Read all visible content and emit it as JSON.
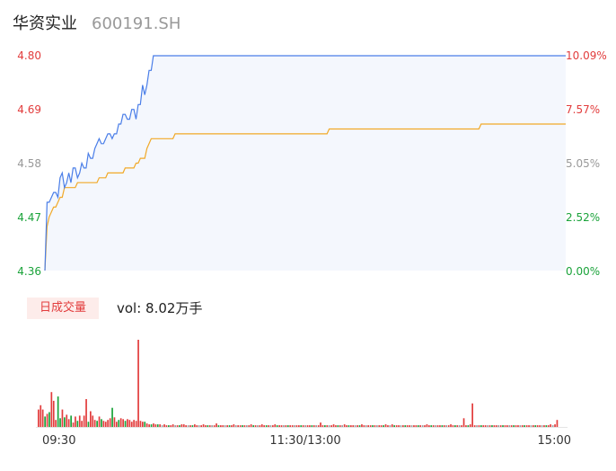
{
  "header": {
    "name": "华资实业",
    "code": "600191.SH"
  },
  "volume_panel": {
    "tag": "日成交量",
    "vol_label": "vol: 8.02万手"
  },
  "colors": {
    "up": "#e23c3c",
    "down": "#1aa33a",
    "flat": "#999999",
    "price": "#4a7ee8",
    "avg": "#f1a928",
    "fill": "#f4f7fd"
  },
  "chart_data": {
    "type": "line",
    "price_axis": {
      "labels": [
        "4.80",
        "4.69",
        "4.58",
        "4.47",
        "4.36"
      ],
      "ylim": [
        4.36,
        4.8
      ]
    },
    "pct_axis": {
      "labels": [
        "10.09%",
        "7.57%",
        "5.05%",
        "2.52%",
        "0.00%"
      ]
    },
    "x_labels": [
      "09:30",
      "11:30/13:00",
      "15:00"
    ],
    "xlim": [
      0,
      240
    ],
    "series": [
      {
        "key": "price",
        "x": [
          0,
          1,
          2,
          3,
          4,
          5,
          6,
          7,
          8,
          9,
          10,
          11,
          12,
          13,
          14,
          15,
          16,
          17,
          18,
          19,
          20,
          21,
          22,
          23,
          24,
          25,
          26,
          27,
          28,
          29,
          30,
          31,
          32,
          33,
          34,
          35,
          36,
          37,
          38,
          39,
          40,
          41,
          42,
          43,
          44,
          45,
          46,
          47,
          48,
          49,
          50,
          240
        ],
        "values": [
          4.36,
          4.5,
          4.5,
          4.51,
          4.52,
          4.52,
          4.51,
          4.55,
          4.56,
          4.53,
          4.54,
          4.56,
          4.54,
          4.57,
          4.57,
          4.55,
          4.56,
          4.58,
          4.57,
          4.57,
          4.6,
          4.59,
          4.59,
          4.61,
          4.62,
          4.63,
          4.62,
          4.62,
          4.63,
          4.64,
          4.64,
          4.63,
          4.64,
          4.64,
          4.66,
          4.66,
          4.68,
          4.68,
          4.67,
          4.67,
          4.69,
          4.69,
          4.67,
          4.7,
          4.7,
          4.74,
          4.72,
          4.74,
          4.77,
          4.77,
          4.8,
          4.8
        ]
      },
      {
        "key": "avg",
        "x": [
          0,
          1,
          2,
          3,
          4,
          5,
          6,
          7,
          8,
          9,
          14,
          15,
          24,
          25,
          28,
          29,
          36,
          37,
          40,
          41,
          42,
          43,
          44,
          45,
          46,
          47,
          48,
          49,
          59,
          60,
          130,
          131,
          200,
          201,
          240
        ],
        "values": [
          4.36,
          4.45,
          4.47,
          4.48,
          4.49,
          4.49,
          4.5,
          4.51,
          4.51,
          4.53,
          4.53,
          4.54,
          4.54,
          4.55,
          4.55,
          4.56,
          4.56,
          4.57,
          4.57,
          4.57,
          4.58,
          4.58,
          4.59,
          4.59,
          4.59,
          4.61,
          4.62,
          4.63,
          4.63,
          4.64,
          4.64,
          4.65,
          4.65,
          4.66,
          4.66
        ]
      }
    ],
    "volume": {
      "max": 100,
      "bars": [
        [
          0,
          20,
          "up"
        ],
        [
          1,
          25,
          "up"
        ],
        [
          2,
          20,
          "up"
        ],
        [
          3,
          12,
          "down"
        ],
        [
          4,
          15,
          "up"
        ],
        [
          5,
          17,
          "down"
        ],
        [
          6,
          40,
          "up"
        ],
        [
          7,
          30,
          "up"
        ],
        [
          8,
          8,
          "up"
        ],
        [
          9,
          35,
          "down"
        ],
        [
          10,
          10,
          "down"
        ],
        [
          11,
          20,
          "up"
        ],
        [
          12,
          11,
          "down"
        ],
        [
          13,
          14,
          "up"
        ],
        [
          14,
          9,
          "up"
        ],
        [
          15,
          13,
          "down"
        ],
        [
          16,
          5,
          "up"
        ],
        [
          17,
          12,
          "up"
        ],
        [
          18,
          7,
          "down"
        ],
        [
          19,
          13,
          "up"
        ],
        [
          20,
          7,
          "up"
        ],
        [
          21,
          13,
          "up"
        ],
        [
          22,
          32,
          "up"
        ],
        [
          23,
          6,
          "down"
        ],
        [
          24,
          18,
          "up"
        ],
        [
          25,
          13,
          "up"
        ],
        [
          26,
          8,
          "up"
        ],
        [
          27,
          7,
          "down"
        ],
        [
          28,
          12,
          "up"
        ],
        [
          29,
          9,
          "down"
        ],
        [
          30,
          7,
          "up"
        ],
        [
          31,
          6,
          "up"
        ],
        [
          32,
          8,
          "up"
        ],
        [
          33,
          10,
          "up"
        ],
        [
          34,
          22,
          "down"
        ],
        [
          35,
          11,
          "up"
        ],
        [
          36,
          6,
          "up"
        ],
        [
          37,
          8,
          "down"
        ],
        [
          38,
          10,
          "up"
        ],
        [
          39,
          9,
          "up"
        ],
        [
          40,
          7,
          "down"
        ],
        [
          41,
          9,
          "up"
        ],
        [
          42,
          8,
          "up"
        ],
        [
          43,
          6,
          "up"
        ],
        [
          44,
          8,
          "up"
        ],
        [
          45,
          7,
          "up"
        ],
        [
          46,
          100,
          "up"
        ],
        [
          47,
          7,
          "up"
        ],
        [
          48,
          6,
          "up"
        ],
        [
          49,
          6,
          "down"
        ],
        [
          50,
          4,
          "up"
        ],
        [
          51,
          3,
          "up"
        ],
        [
          52,
          3,
          "down"
        ],
        [
          53,
          4,
          "up"
        ],
        [
          54,
          3,
          "up"
        ],
        [
          55,
          3,
          "down"
        ],
        [
          56,
          3,
          "up"
        ],
        [
          57,
          2,
          "flat"
        ],
        [
          58,
          3,
          "up"
        ],
        [
          59,
          2,
          "up"
        ],
        [
          60,
          2,
          "down"
        ],
        [
          61,
          2,
          "up"
        ],
        [
          62,
          3,
          "up"
        ],
        [
          63,
          2,
          "flat"
        ],
        [
          64,
          2,
          "up"
        ],
        [
          65,
          2,
          "down"
        ],
        [
          66,
          3,
          "up"
        ],
        [
          67,
          3,
          "up"
        ],
        [
          68,
          2,
          "up"
        ],
        [
          69,
          2,
          "flat"
        ],
        [
          70,
          2,
          "up"
        ],
        [
          71,
          2,
          "down"
        ],
        [
          72,
          3,
          "up"
        ],
        [
          73,
          2,
          "up"
        ],
        [
          74,
          2,
          "flat"
        ],
        [
          75,
          2,
          "up"
        ],
        [
          76,
          3,
          "up"
        ],
        [
          77,
          2,
          "up"
        ],
        [
          78,
          2,
          "down"
        ],
        [
          79,
          2,
          "up"
        ],
        [
          80,
          2,
          "flat"
        ],
        [
          81,
          2,
          "up"
        ],
        [
          82,
          4,
          "up"
        ],
        [
          83,
          2,
          "down"
        ],
        [
          84,
          2,
          "up"
        ],
        [
          85,
          2,
          "up"
        ],
        [
          86,
          2,
          "flat"
        ],
        [
          87,
          2,
          "up"
        ],
        [
          88,
          2,
          "down"
        ],
        [
          89,
          2,
          "up"
        ],
        [
          90,
          3,
          "up"
        ],
        [
          91,
          2,
          "flat"
        ],
        [
          92,
          2,
          "up"
        ],
        [
          93,
          2,
          "up"
        ],
        [
          94,
          2,
          "down"
        ],
        [
          95,
          2,
          "up"
        ],
        [
          96,
          2,
          "flat"
        ],
        [
          97,
          2,
          "up"
        ],
        [
          98,
          3,
          "up"
        ],
        [
          99,
          2,
          "down"
        ],
        [
          100,
          2,
          "up"
        ],
        [
          101,
          2,
          "flat"
        ],
        [
          102,
          2,
          "up"
        ],
        [
          103,
          3,
          "up"
        ],
        [
          104,
          2,
          "up"
        ],
        [
          105,
          2,
          "down"
        ],
        [
          106,
          2,
          "up"
        ],
        [
          107,
          2,
          "flat"
        ],
        [
          108,
          2,
          "up"
        ],
        [
          109,
          3,
          "up"
        ],
        [
          110,
          2,
          "down"
        ],
        [
          111,
          2,
          "up"
        ],
        [
          112,
          2,
          "up"
        ],
        [
          113,
          2,
          "flat"
        ],
        [
          114,
          2,
          "up"
        ],
        [
          115,
          2,
          "down"
        ],
        [
          116,
          2,
          "up"
        ],
        [
          117,
          2,
          "up"
        ],
        [
          118,
          2,
          "flat"
        ],
        [
          119,
          2,
          "up"
        ],
        [
          120,
          2,
          "up"
        ],
        [
          121,
          2,
          "down"
        ],
        [
          122,
          2,
          "up"
        ],
        [
          123,
          2,
          "flat"
        ],
        [
          124,
          2,
          "up"
        ],
        [
          125,
          2,
          "up"
        ],
        [
          126,
          2,
          "down"
        ],
        [
          127,
          2,
          "up"
        ],
        [
          128,
          2,
          "flat"
        ],
        [
          129,
          2,
          "up"
        ],
        [
          130,
          5,
          "up"
        ],
        [
          131,
          2,
          "up"
        ],
        [
          132,
          2,
          "down"
        ],
        [
          133,
          2,
          "up"
        ],
        [
          134,
          2,
          "flat"
        ],
        [
          135,
          2,
          "up"
        ],
        [
          136,
          3,
          "up"
        ],
        [
          137,
          2,
          "up"
        ],
        [
          138,
          2,
          "down"
        ],
        [
          139,
          2,
          "up"
        ],
        [
          140,
          2,
          "flat"
        ],
        [
          141,
          3,
          "up"
        ],
        [
          142,
          2,
          "up"
        ],
        [
          143,
          2,
          "down"
        ],
        [
          144,
          2,
          "up"
        ],
        [
          145,
          2,
          "up"
        ],
        [
          146,
          2,
          "flat"
        ],
        [
          147,
          2,
          "up"
        ],
        [
          148,
          2,
          "down"
        ],
        [
          149,
          3,
          "up"
        ],
        [
          150,
          2,
          "up"
        ],
        [
          151,
          2,
          "flat"
        ],
        [
          152,
          2,
          "up"
        ],
        [
          153,
          2,
          "up"
        ],
        [
          154,
          2,
          "down"
        ],
        [
          155,
          2,
          "up"
        ],
        [
          156,
          2,
          "flat"
        ],
        [
          157,
          2,
          "up"
        ],
        [
          158,
          2,
          "up"
        ],
        [
          159,
          2,
          "down"
        ],
        [
          160,
          3,
          "up"
        ],
        [
          161,
          2,
          "up"
        ],
        [
          162,
          2,
          "flat"
        ],
        [
          163,
          3,
          "up"
        ],
        [
          164,
          2,
          "down"
        ],
        [
          165,
          2,
          "up"
        ],
        [
          166,
          2,
          "up"
        ],
        [
          167,
          2,
          "flat"
        ],
        [
          168,
          2,
          "up"
        ],
        [
          169,
          2,
          "down"
        ],
        [
          170,
          2,
          "up"
        ],
        [
          171,
          2,
          "up"
        ],
        [
          172,
          2,
          "flat"
        ],
        [
          173,
          2,
          "up"
        ],
        [
          174,
          2,
          "up"
        ],
        [
          175,
          2,
          "down"
        ],
        [
          176,
          2,
          "up"
        ],
        [
          177,
          2,
          "flat"
        ],
        [
          178,
          2,
          "up"
        ],
        [
          179,
          3,
          "up"
        ],
        [
          180,
          2,
          "up"
        ],
        [
          181,
          2,
          "down"
        ],
        [
          182,
          2,
          "up"
        ],
        [
          183,
          2,
          "flat"
        ],
        [
          184,
          2,
          "up"
        ],
        [
          185,
          2,
          "up"
        ],
        [
          186,
          2,
          "down"
        ],
        [
          187,
          2,
          "up"
        ],
        [
          188,
          2,
          "flat"
        ],
        [
          189,
          2,
          "up"
        ],
        [
          190,
          3,
          "up"
        ],
        [
          191,
          2,
          "up"
        ],
        [
          192,
          2,
          "down"
        ],
        [
          193,
          2,
          "up"
        ],
        [
          194,
          2,
          "flat"
        ],
        [
          195,
          2,
          "up"
        ],
        [
          196,
          10,
          "up"
        ],
        [
          197,
          2,
          "up"
        ],
        [
          198,
          2,
          "down"
        ],
        [
          199,
          3,
          "up"
        ],
        [
          200,
          27,
          "up"
        ],
        [
          201,
          2,
          "up"
        ],
        [
          202,
          2,
          "flat"
        ],
        [
          203,
          2,
          "up"
        ],
        [
          204,
          2,
          "down"
        ],
        [
          205,
          2,
          "up"
        ],
        [
          206,
          2,
          "up"
        ],
        [
          207,
          2,
          "flat"
        ],
        [
          208,
          2,
          "up"
        ],
        [
          209,
          2,
          "down"
        ],
        [
          210,
          2,
          "up"
        ],
        [
          211,
          2,
          "up"
        ],
        [
          212,
          2,
          "flat"
        ],
        [
          213,
          2,
          "up"
        ],
        [
          214,
          2,
          "down"
        ],
        [
          215,
          2,
          "up"
        ],
        [
          216,
          2,
          "up"
        ],
        [
          217,
          2,
          "flat"
        ],
        [
          218,
          2,
          "up"
        ],
        [
          219,
          2,
          "down"
        ],
        [
          220,
          2,
          "up"
        ],
        [
          221,
          2,
          "up"
        ],
        [
          222,
          2,
          "flat"
        ],
        [
          223,
          2,
          "up"
        ],
        [
          224,
          2,
          "down"
        ],
        [
          225,
          2,
          "up"
        ],
        [
          226,
          2,
          "up"
        ],
        [
          227,
          2,
          "flat"
        ],
        [
          228,
          2,
          "up"
        ],
        [
          229,
          2,
          "down"
        ],
        [
          230,
          2,
          "up"
        ],
        [
          231,
          2,
          "up"
        ],
        [
          232,
          2,
          "flat"
        ],
        [
          233,
          2,
          "up"
        ],
        [
          234,
          2,
          "down"
        ],
        [
          235,
          2,
          "up"
        ],
        [
          236,
          3,
          "up"
        ],
        [
          237,
          2,
          "flat"
        ],
        [
          238,
          3,
          "up"
        ],
        [
          239,
          8,
          "up"
        ]
      ]
    }
  }
}
